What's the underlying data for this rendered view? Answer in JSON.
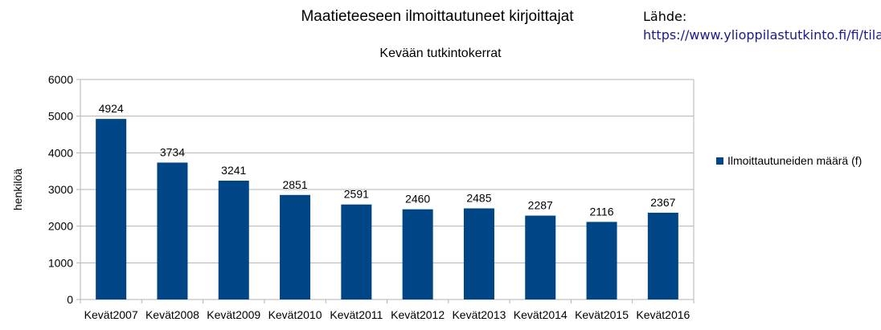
{
  "title": "Maatieteeseen ilmoittautuneet kirjoittajat",
  "subtitle": "Kevään tutkintokerrat",
  "source": {
    "label": "Lähde:",
    "url": "https://www.ylioppilastutkinto.fi/fi/tilastot"
  },
  "colors": {
    "bar": "#004586",
    "grid": "#b3b3b3"
  },
  "chart_data": {
    "type": "bar",
    "title": "Maatieteeseen ilmoittautuneet kirjoittajat",
    "subtitle": "Kevään tutkintokerrat",
    "xlabel": "",
    "ylabel": "henkilöä",
    "ylim": [
      0,
      6000
    ],
    "yticks": [
      0,
      1000,
      2000,
      3000,
      4000,
      5000,
      6000
    ],
    "grid": true,
    "legend_position": "right",
    "categories": [
      "Kevät2007",
      "Kevät2008",
      "Kevät2009",
      "Kevät2010",
      "Kevät2011",
      "Kevät2012",
      "Kevät2013",
      "Kevät2014",
      "Kevät2015",
      "Kevät2016"
    ],
    "series": [
      {
        "name": "Ilmoittautuneiden määrä (f)",
        "values": [
          4924,
          3734,
          3241,
          2851,
          2591,
          2460,
          2485,
          2287,
          2116,
          2367
        ]
      }
    ]
  }
}
